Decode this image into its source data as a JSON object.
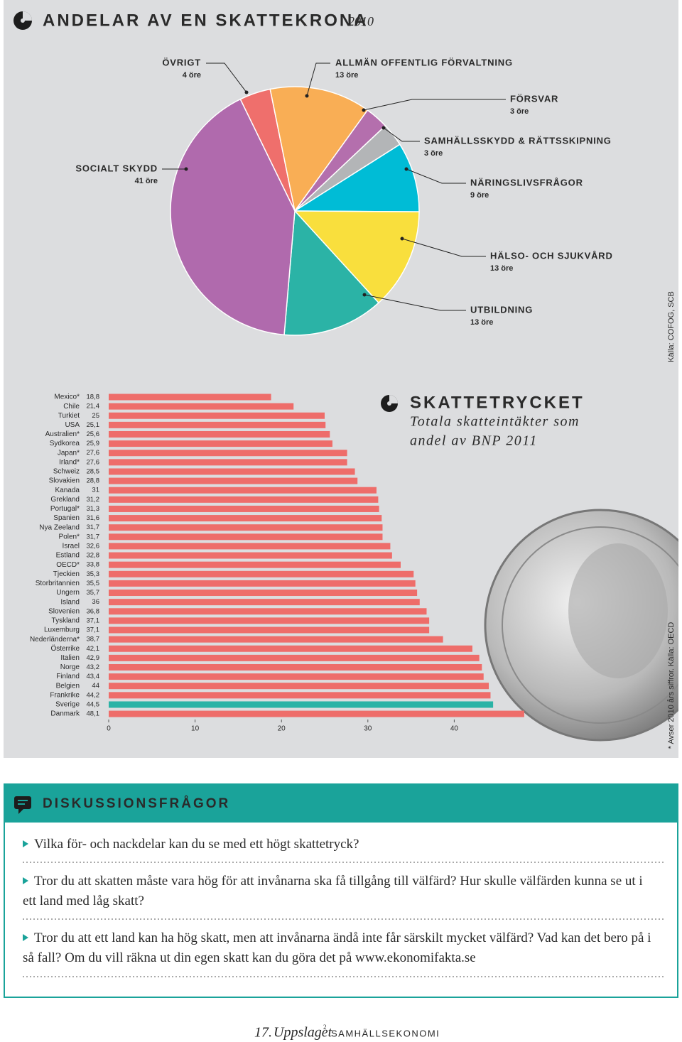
{
  "chart_data": [
    {
      "type": "pie",
      "title": "ANDELAR AV EN SKATTEKRONA",
      "subtitle": "2010",
      "categories": [
        "ÖVRIGT",
        "ALLMÄN OFFENTLIG FÖRVALTNING",
        "FÖRSVAR",
        "SAMHÄLLSSKYDD & RÄTTSSKIPNING",
        "NÄRINGSLIVSFRÅGOR",
        "HÄLSO- OCH SJUKVÅRD",
        "UTBILDNING",
        "SOCIALT SKYDD"
      ],
      "values": [
        4,
        13,
        3,
        3,
        9,
        13,
        13,
        41
      ],
      "value_labels": [
        "4 öre",
        "13 öre",
        "3 öre",
        "3 öre",
        "9 öre",
        "13 öre",
        "13 öre",
        "41 öre"
      ],
      "colors": [
        "#ef6f6c",
        "#f9ae55",
        "#b46fad",
        "#b3b5b7",
        "#00bcd6",
        "#f9df3d",
        "#2bb3a6",
        "#b06aad"
      ],
      "source": "Källa: COFOG, SCB"
    },
    {
      "type": "bar",
      "orientation": "horizontal",
      "title": "SKATTETRYCKET",
      "subtitle": [
        "Totala skatteintäkter som",
        "andel av BNP 2011"
      ],
      "categories": [
        "Mexico*",
        "Chile",
        "Turkiet",
        "USA",
        "Australien*",
        "Sydkorea",
        "Japan*",
        "Irland*",
        "Schweiz",
        "Slovakien",
        "Kanada",
        "Grekland",
        "Portugal*",
        "Spanien",
        "Nya Zeeland",
        "Polen*",
        "Israel",
        "Estland",
        "OECD*",
        "Tjeckien",
        "Storbritannien",
        "Ungern",
        "Island",
        "Slovenien",
        "Tyskland",
        "Luxemburg",
        "Nederländerna*",
        "Österrike",
        "Italien",
        "Norge",
        "Finland",
        "Belgien",
        "Frankrike",
        "Sverige",
        "Danmark"
      ],
      "values": [
        18.8,
        21.4,
        25,
        25.1,
        25.6,
        25.9,
        27.6,
        27.6,
        28.5,
        28.8,
        31,
        31.2,
        31.3,
        31.6,
        31.7,
        31.7,
        32.6,
        32.8,
        33.8,
        35.3,
        35.5,
        35.7,
        36,
        36.8,
        37.1,
        37.1,
        38.7,
        42.1,
        42.9,
        43.2,
        43.4,
        44,
        44.2,
        44.5,
        48.1
      ],
      "value_labels": [
        "18,8",
        "21,4",
        "25",
        "25,1",
        "25,6",
        "25,9",
        "27,6",
        "27,6",
        "28,5",
        "28,8",
        "31",
        "31,2",
        "31,3",
        "31,6",
        "31,7",
        "31,7",
        "32,6",
        "32,8",
        "33,8",
        "35,3",
        "35,5",
        "35,7",
        "36",
        "36,8",
        "37,1",
        "37,1",
        "38,7",
        "42,1",
        "42,9",
        "43,2",
        "43,4",
        "44",
        "44,2",
        "44,5",
        "48,1"
      ],
      "colors": [
        "#ee6d6a",
        "#ee6d6a",
        "#ee6d6a",
        "#ee6d6a",
        "#ee6d6a",
        "#ee6d6a",
        "#ee6d6a",
        "#ee6d6a",
        "#ee6d6a",
        "#ee6d6a",
        "#ee6d6a",
        "#ee6d6a",
        "#ee6d6a",
        "#ee6d6a",
        "#ee6d6a",
        "#ee6d6a",
        "#ee6d6a",
        "#ee6d6a",
        "#ee6d6a",
        "#ee6d6a",
        "#ee6d6a",
        "#ee6d6a",
        "#ee6d6a",
        "#ee6d6a",
        "#ee6d6a",
        "#ee6d6a",
        "#ee6d6a",
        "#ee6d6a",
        "#ee6d6a",
        "#ee6d6a",
        "#ee6d6a",
        "#ee6d6a",
        "#ee6d6a",
        "#2bb3a6",
        "#ee6d6a"
      ],
      "xlim": [
        0,
        50
      ],
      "xticks": [
        0,
        10,
        20,
        30,
        40
      ],
      "note": "* Avser 2010 års siffror. Källa: OECD"
    }
  ],
  "discussion": {
    "title": "DISKUSSIONSFRÅGOR",
    "questions": [
      "Vilka för- och nackdelar kan du se med ett högt skattetryck?",
      "Tror du att skatten måste vara hög för att invånarna ska få tillgång till välfärd? Hur skulle välfärden kunna se ut i ett land med låg skatt?",
      "Tror du att ett land kan ha hög skatt, men att invånarna ändå inte får särskilt mycket välfärd? Vad kan det bero på i så fall? Om du vill räkna ut din egen skatt kan du göra det på www.ekonomifakta.se"
    ]
  },
  "footer": {
    "page": "17.",
    "brand": "Uppslaget",
    "brand_mark": "2",
    "section": "SAMHÄLLSEKONOMI"
  }
}
